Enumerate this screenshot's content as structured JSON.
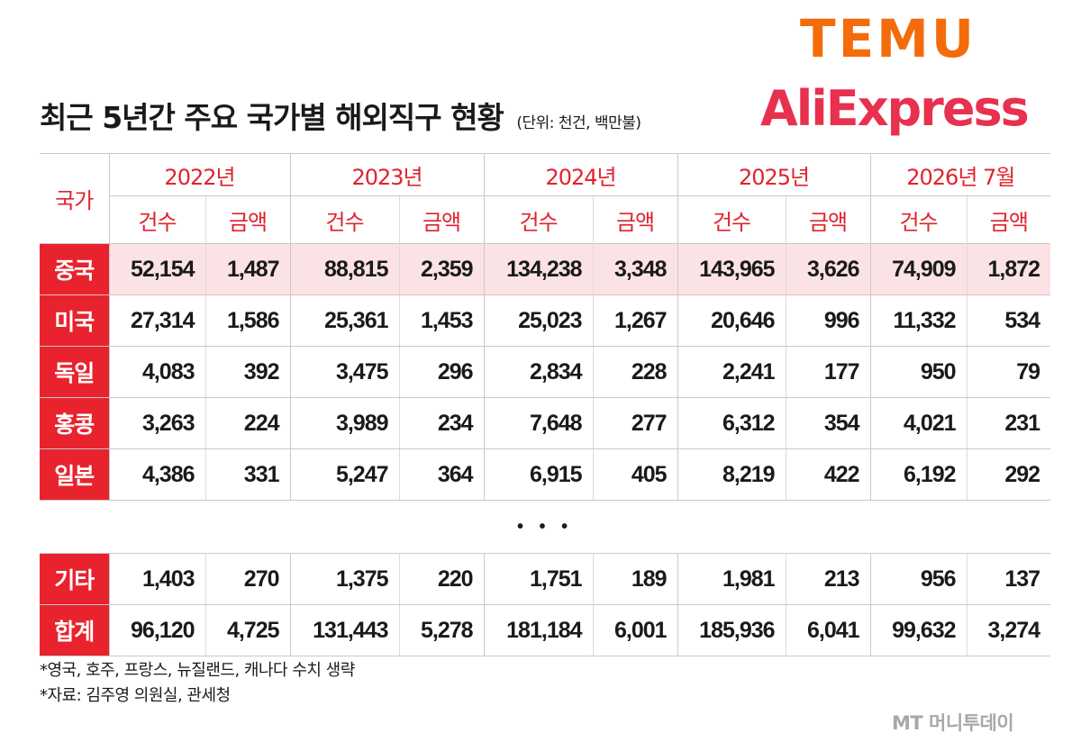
{
  "title": "최근 5년간 주요 국가별 해외직구 현황",
  "unit_note": "(단위: 천건, 백만불)",
  "logos": {
    "temu": "TEMU",
    "aliexpress": "AliExpress"
  },
  "colors": {
    "accent_red": "#e8232d",
    "highlight_row": "#fbe3e5",
    "temu_orange": "#f46b0b",
    "ali_red": "#e8304f"
  },
  "chart_data": {
    "type": "table",
    "title": "최근 5년간 주요 국가별 해외직구 현황",
    "row_header": "국가",
    "years": [
      "2022년",
      "2023년",
      "2024년",
      "2025년",
      "2026년 7월"
    ],
    "sub_headers": [
      "건수",
      "금액"
    ],
    "rows": [
      {
        "country": "중국",
        "values": [
          "52,154",
          "1,487",
          "88,815",
          "2,359",
          "134,238",
          "3,348",
          "143,965",
          "3,626",
          "74,909",
          "1,872"
        ]
      },
      {
        "country": "미국",
        "values": [
          "27,314",
          "1,586",
          "25,361",
          "1,453",
          "25,023",
          "1,267",
          "20,646",
          "996",
          "11,332",
          "534"
        ]
      },
      {
        "country": "독일",
        "values": [
          "4,083",
          "392",
          "3,475",
          "296",
          "2,834",
          "228",
          "2,241",
          "177",
          "950",
          "79"
        ]
      },
      {
        "country": "홍콩",
        "values": [
          "3,263",
          "224",
          "3,989",
          "234",
          "7,648",
          "277",
          "6,312",
          "354",
          "4,021",
          "231"
        ]
      },
      {
        "country": "일본",
        "values": [
          "4,386",
          "331",
          "5,247",
          "364",
          "6,915",
          "405",
          "8,219",
          "422",
          "6,192",
          "292"
        ]
      }
    ],
    "ellipsis": "• • •",
    "bottom_rows": [
      {
        "country": "기타",
        "values": [
          "1,403",
          "270",
          "1,375",
          "220",
          "1,751",
          "189",
          "1,981",
          "213",
          "956",
          "137"
        ]
      },
      {
        "country": "합계",
        "values": [
          "96,120",
          "4,725",
          "131,443",
          "5,278",
          "181,184",
          "6,001",
          "185,936",
          "6,041",
          "99,632",
          "3,274"
        ]
      }
    ]
  },
  "notes": [
    "*영국, 호주, 프랑스, 뉴질랜드, 캐나다 수치 생략",
    "*자료: 김주영 의원실, 관세청"
  ],
  "watermark": "MT 머니투데이"
}
